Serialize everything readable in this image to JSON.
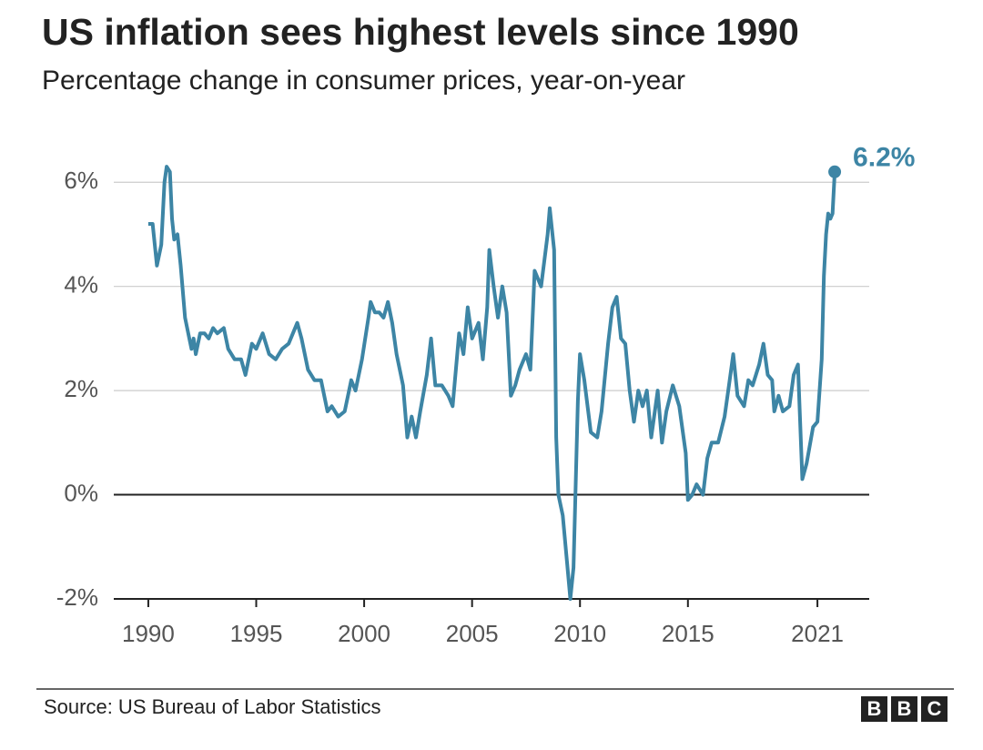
{
  "chart_data": {
    "type": "line",
    "title": "US inflation sees highest levels since 1990",
    "subtitle": "Percentage change in consumer prices, year-on-year",
    "source": "Source: US Bureau of Labor Statistics",
    "logo": [
      "B",
      "B",
      "C"
    ],
    "color": "#3d85a5",
    "x": [
      1990.0,
      1990.2,
      1990.4,
      1990.6,
      1990.75,
      1990.85,
      1991.0,
      1991.1,
      1991.2,
      1991.35,
      1991.5,
      1991.7,
      1991.9,
      1992.0,
      1992.1,
      1992.2,
      1992.4,
      1992.6,
      1992.8,
      1993.0,
      1993.2,
      1993.5,
      1993.7,
      1994.0,
      1994.3,
      1994.5,
      1994.8,
      1995.0,
      1995.3,
      1995.6,
      1995.9,
      1996.2,
      1996.5,
      1996.9,
      1997.1,
      1997.4,
      1997.7,
      1998.0,
      1998.3,
      1998.5,
      1998.8,
      1999.1,
      1999.4,
      1999.6,
      1999.9,
      2000.2,
      2000.3,
      2000.5,
      2000.7,
      2000.9,
      2001.1,
      2001.3,
      2001.5,
      2001.8,
      2002.0,
      2002.2,
      2002.4,
      2002.6,
      2002.9,
      2003.1,
      2003.3,
      2003.6,
      2003.9,
      2004.1,
      2004.4,
      2004.6,
      2004.8,
      2005.0,
      2005.3,
      2005.5,
      2005.7,
      2005.8,
      2006.0,
      2006.2,
      2006.4,
      2006.6,
      2006.8,
      2007.0,
      2007.2,
      2007.5,
      2007.7,
      2007.9,
      2008.2,
      2008.5,
      2008.6,
      2008.8,
      2008.9,
      2009.0,
      2009.2,
      2009.4,
      2009.55,
      2009.7,
      2009.9,
      2010.0,
      2010.2,
      2010.5,
      2010.8,
      2011.0,
      2011.3,
      2011.5,
      2011.7,
      2011.9,
      2012.1,
      2012.3,
      2012.5,
      2012.7,
      2012.9,
      2013.1,
      2013.3,
      2013.6,
      2013.8,
      2014.0,
      2014.3,
      2014.6,
      2014.9,
      2015.0,
      2015.2,
      2015.4,
      2015.7,
      2015.9,
      2016.1,
      2016.4,
      2016.7,
      2016.9,
      2017.1,
      2017.3,
      2017.6,
      2017.8,
      2018.0,
      2018.3,
      2018.5,
      2018.7,
      2018.9,
      2019.0,
      2019.2,
      2019.4,
      2019.7,
      2019.9,
      2020.1,
      2020.3,
      2020.5,
      2020.8,
      2021.0,
      2021.2,
      2021.3,
      2021.4,
      2021.5,
      2021.6,
      2021.7,
      2021.8
    ],
    "values": [
      5.2,
      5.2,
      4.4,
      4.8,
      6.0,
      6.3,
      6.2,
      5.3,
      4.9,
      5.0,
      4.4,
      3.4,
      3.0,
      2.8,
      3.0,
      2.7,
      3.1,
      3.1,
      3.0,
      3.2,
      3.1,
      3.2,
      2.8,
      2.6,
      2.6,
      2.3,
      2.9,
      2.8,
      3.1,
      2.7,
      2.6,
      2.8,
      2.9,
      3.3,
      3.0,
      2.4,
      2.2,
      2.2,
      1.6,
      1.7,
      1.5,
      1.6,
      2.2,
      2.0,
      2.6,
      3.4,
      3.7,
      3.5,
      3.5,
      3.4,
      3.7,
      3.3,
      2.7,
      2.1,
      1.1,
      1.5,
      1.1,
      1.6,
      2.3,
      3.0,
      2.1,
      2.1,
      1.9,
      1.7,
      3.1,
      2.7,
      3.6,
      3.0,
      3.3,
      2.6,
      3.6,
      4.7,
      4.0,
      3.4,
      4.0,
      3.5,
      1.9,
      2.1,
      2.4,
      2.7,
      2.4,
      4.3,
      4.0,
      5.0,
      5.5,
      4.7,
      1.1,
      0.0,
      -0.4,
      -1.3,
      -2.0,
      -1.4,
      1.8,
      2.7,
      2.2,
      1.2,
      1.1,
      1.6,
      2.9,
      3.6,
      3.8,
      3.0,
      2.9,
      2.0,
      1.4,
      2.0,
      1.7,
      2.0,
      1.1,
      2.0,
      1.0,
      1.6,
      2.1,
      1.7,
      0.8,
      -0.1,
      0.0,
      0.2,
      0.0,
      0.7,
      1.0,
      1.0,
      1.5,
      2.1,
      2.7,
      1.9,
      1.7,
      2.2,
      2.1,
      2.5,
      2.9,
      2.3,
      2.2,
      1.6,
      1.9,
      1.6,
      1.7,
      2.3,
      2.5,
      0.3,
      0.6,
      1.3,
      1.4,
      2.6,
      4.2,
      5.0,
      5.4,
      5.3,
      5.4,
      6.2
    ],
    "annotation": {
      "label": "6.2%",
      "value": 6.2,
      "x": 2021.8
    },
    "xlim": [
      1988.4,
      2023.4
    ],
    "xticks": [
      1990,
      1995,
      2000,
      2005,
      2010,
      2015,
      2021
    ],
    "ylim": [
      -2,
      7
    ],
    "yticks": [
      {
        "value": -2,
        "label": "-2%"
      },
      {
        "value": 0,
        "label": "0%"
      },
      {
        "value": 2,
        "label": "2%"
      },
      {
        "value": 4,
        "label": "4%"
      },
      {
        "value": 6,
        "label": "6%"
      }
    ],
    "grid": true
  }
}
